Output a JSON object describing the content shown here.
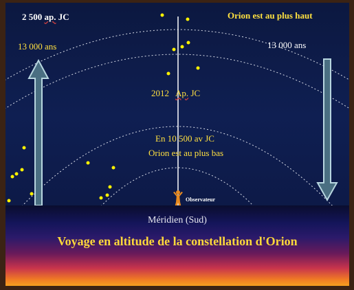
{
  "labels": {
    "top_left": "2 500",
    "top_left_abbr": "ap.",
    "top_left_jc": "JC",
    "top_right": "Orion est au plus haut",
    "left_years": "13 000  ans",
    "right_years": "13 000  ans",
    "year_2012": "2012",
    "year_2012_abbr": "Ap.",
    "year_2012_jc": "JC",
    "low_line1": "En  10 500  av JC",
    "low_line2": "Orion  est  au  plus bas",
    "observer": "Observateur",
    "meridien": "Méridien  (Sud)",
    "bottom_title": "Voyage en altitude de la constellation  d'Orion"
  },
  "colors": {
    "sky": "#0f1f52",
    "star": "#fff200",
    "arrow": "#8ab0c0",
    "title_yellow": "#ffd83a"
  },
  "icons": [
    "up-arrow-icon",
    "down-arrow-icon",
    "observer-icon",
    "star-icon"
  ]
}
